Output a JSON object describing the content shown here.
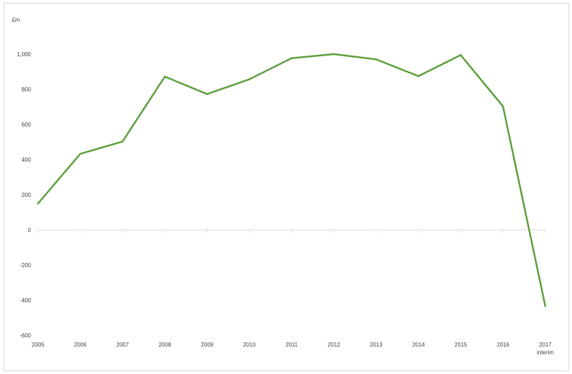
{
  "chart_data": {
    "type": "line",
    "title": "",
    "xlabel": "",
    "ylabel": "£m",
    "categories": [
      "2005",
      "2006",
      "2007",
      "2008",
      "2009",
      "2010",
      "2011",
      "2012",
      "2013",
      "2014",
      "2015",
      "2016",
      "2017"
    ],
    "category_sublabels": [
      "",
      "",
      "",
      "",
      "",
      "",
      "",
      "",
      "",
      "",
      "",
      "",
      "interim"
    ],
    "series": [
      {
        "color": "#5b9f3a",
        "values": [
          150,
          433,
          503,
          872,
          773,
          857,
          977,
          1000,
          970,
          875,
          995,
          703,
          -433
        ]
      }
    ],
    "y_ticks": [
      {
        "value": 1000,
        "label": "1,000"
      },
      {
        "value": 800,
        "label": "800"
      },
      {
        "value": 600,
        "label": "600"
      },
      {
        "value": 400,
        "label": "400"
      },
      {
        "value": 200,
        "label": "200"
      },
      {
        "value": 0,
        "label": "0"
      },
      {
        "value": -200,
        "label": "-200"
      },
      {
        "value": -400,
        "label": "-400"
      },
      {
        "value": -600,
        "label": "-600"
      }
    ],
    "ylim": [
      -600,
      1000
    ],
    "grid": false,
    "legend": "none",
    "colors": {
      "axis": "#d9d9d9",
      "text": "#404040"
    }
  }
}
